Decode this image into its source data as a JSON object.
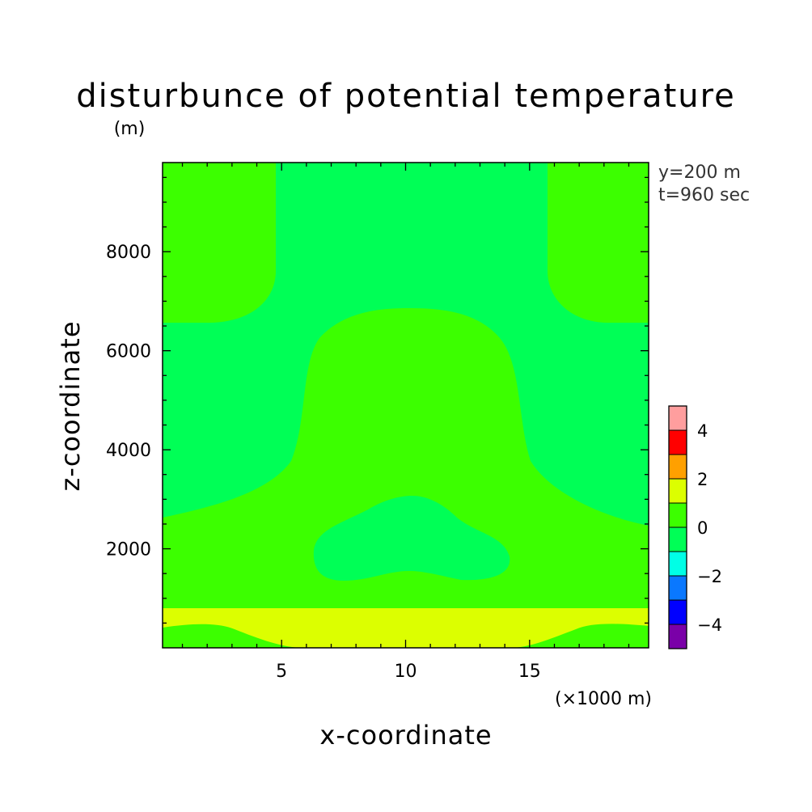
{
  "chart_data": {
    "type": "heatmap",
    "title": "disturbunce of potential temperature",
    "title_unit": "(m)",
    "xlabel": "x-coordinate",
    "ylabel": "z-coordinate",
    "x_unit": "(×1000 m)",
    "xlim": [
      0.2,
      19.8
    ],
    "ylim": [
      0,
      9800
    ],
    "x_ticks": [
      5,
      10,
      15
    ],
    "y_ticks": [
      2000,
      4000,
      6000,
      8000
    ],
    "annotations": [
      "y=200 m",
      "t=960 sec"
    ],
    "colorbar": {
      "levels": [
        -5,
        -4,
        -3,
        -2,
        -1,
        0,
        1,
        2,
        3,
        4,
        5
      ],
      "colors": [
        "#7a00a8",
        "#0000ff",
        "#0a78ff",
        "#00ffe6",
        "#00ff56",
        "#3cff00",
        "#dcff00",
        "#ffa000",
        "#ff0000",
        "#ff9e9e"
      ],
      "tick_labels": [
        "-4",
        "-2",
        "0",
        "2",
        "4"
      ]
    },
    "regions": [
      {
        "level_range": [
          -1,
          0
        ],
        "color": "#00ff56",
        "role": "background"
      },
      {
        "level_range": [
          0,
          1
        ],
        "color": "#3cff00",
        "role": "upper-left lobe",
        "approx_x": [
          0.2,
          4.8
        ],
        "approx_z": [
          6600,
          9800
        ]
      },
      {
        "level_range": [
          0,
          1
        ],
        "color": "#3cff00",
        "role": "upper-right lobe",
        "approx_x": [
          15.2,
          19.8
        ],
        "approx_z": [
          6600,
          9800
        ]
      },
      {
        "level_range": [
          0,
          1
        ],
        "color": "#3cff00",
        "role": "central dome and lower band",
        "approx_x": [
          0.2,
          19.8
        ],
        "approx_z": [
          0,
          7000
        ]
      },
      {
        "level_range": [
          -1,
          0
        ],
        "color": "#00ff56",
        "role": "central lower pocket",
        "approx_x": [
          6.2,
          14.2
        ],
        "approx_z": [
          1350,
          3100
        ]
      },
      {
        "level_range": [
          1,
          2
        ],
        "color": "#dcff00",
        "role": "near-surface band",
        "approx_x": [
          0.2,
          19.8
        ],
        "approx_z": [
          0,
          820
        ]
      }
    ]
  }
}
